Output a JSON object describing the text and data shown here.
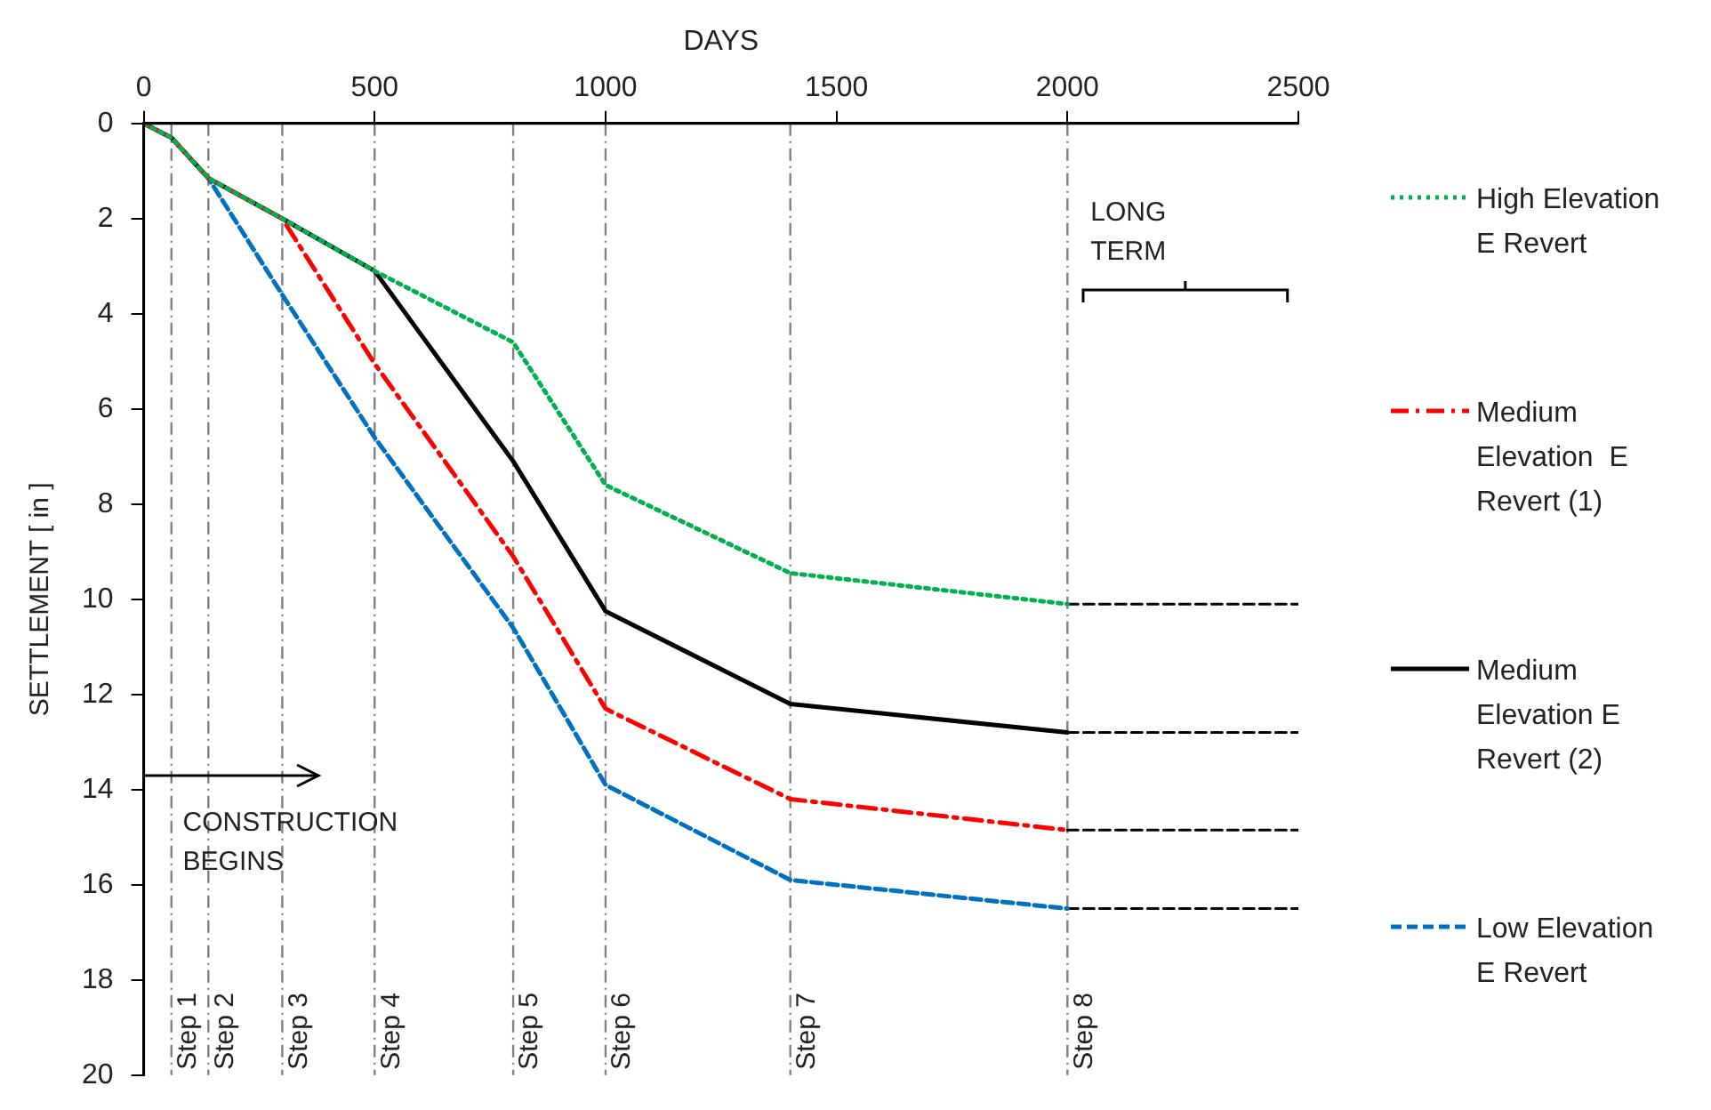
{
  "chart_data": {
    "type": "line",
    "xlabel": "DAYS",
    "ylabel": "SETTLEMENT [ in ]",
    "xlim": [
      0,
      2500
    ],
    "xticks": [
      0,
      500,
      1000,
      1500,
      2000,
      2500
    ],
    "ylim": [
      20,
      0
    ],
    "yticks": [
      0,
      2,
      4,
      6,
      8,
      10,
      12,
      14,
      16,
      18,
      20
    ],
    "grid": false,
    "legend": "right",
    "marker": "none",
    "series": [
      {
        "name": "High Elevation E Revert",
        "color": "#00b050",
        "line_style": "dotted",
        "x": [
          0,
          60,
          140,
          300,
          500,
          800,
          1000,
          1400,
          2000
        ],
        "values": [
          0,
          0.3,
          1.15,
          2.0,
          3.1,
          4.6,
          7.6,
          9.45,
          10.1
        ]
      },
      {
        "name": "Medium Elevation  E Revert (1)",
        "color": "#ff0000",
        "line_style": "dashdot",
        "x": [
          0,
          60,
          140,
          300,
          500,
          800,
          1000,
          1400,
          2000
        ],
        "values": [
          0,
          0.3,
          1.15,
          2.0,
          5.05,
          9.1,
          12.3,
          14.2,
          14.85
        ]
      },
      {
        "name": "Medium Elevation E Revert (2)",
        "color": "#000000",
        "line_style": "solid",
        "x": [
          0,
          60,
          140,
          300,
          500,
          800,
          1000,
          1400,
          2000
        ],
        "values": [
          0,
          0.3,
          1.15,
          2.0,
          3.1,
          7.1,
          10.25,
          12.2,
          12.8
        ]
      },
      {
        "name": "Low Elevation E Revert",
        "color": "#0070c0",
        "line_style": "dashed",
        "x": [
          0,
          60,
          140,
          300,
          500,
          800,
          1000,
          1400,
          2000
        ],
        "values": [
          0,
          0.3,
          1.15,
          3.6,
          6.6,
          10.6,
          13.9,
          15.9,
          16.5
        ]
      },
      {
        "color": "#000000",
        "line_style": "dashed",
        "x": [
          2000,
          2500
        ],
        "values": [
          10.1,
          10.1
        ]
      },
      {
        "color": "#000000",
        "line_style": "dashed",
        "x": [
          2000,
          2500
        ],
        "values": [
          12.8,
          12.8
        ]
      },
      {
        "color": "#000000",
        "line_style": "dashed",
        "x": [
          2000,
          2500
        ],
        "values": [
          14.85,
          14.85
        ]
      },
      {
        "color": "#000000",
        "line_style": "dashed",
        "x": [
          2000,
          2500
        ],
        "values": [
          16.5,
          16.5
        ]
      }
    ],
    "ref_lines": [
      {
        "axis": "x",
        "value": 60,
        "label": "Step 1",
        "color": "#808080",
        "line_style": "dashed"
      },
      {
        "axis": "x",
        "value": 140,
        "label": "Step 2",
        "color": "#808080",
        "line_style": "dashed"
      },
      {
        "axis": "x",
        "value": 300,
        "label": "Step 3",
        "color": "#808080",
        "line_style": "dashed"
      },
      {
        "axis": "x",
        "value": 500,
        "label": "Step 4",
        "color": "#808080",
        "line_style": "dashed"
      },
      {
        "axis": "x",
        "value": 800,
        "label": "Step 5",
        "color": "#808080",
        "line_style": "dashed"
      },
      {
        "axis": "x",
        "value": 1000,
        "label": "Step 6",
        "color": "#808080",
        "line_style": "dashed"
      },
      {
        "axis": "x",
        "value": 1400,
        "label": "Step 7",
        "color": "#808080",
        "line_style": "dashed"
      },
      {
        "axis": "x",
        "value": 2000,
        "label": "Step 8",
        "color": "#808080",
        "line_style": "dashed"
      }
    ],
    "annotations": [
      "CONSTRUCTION BEGINS",
      "LONG TERM"
    ]
  }
}
